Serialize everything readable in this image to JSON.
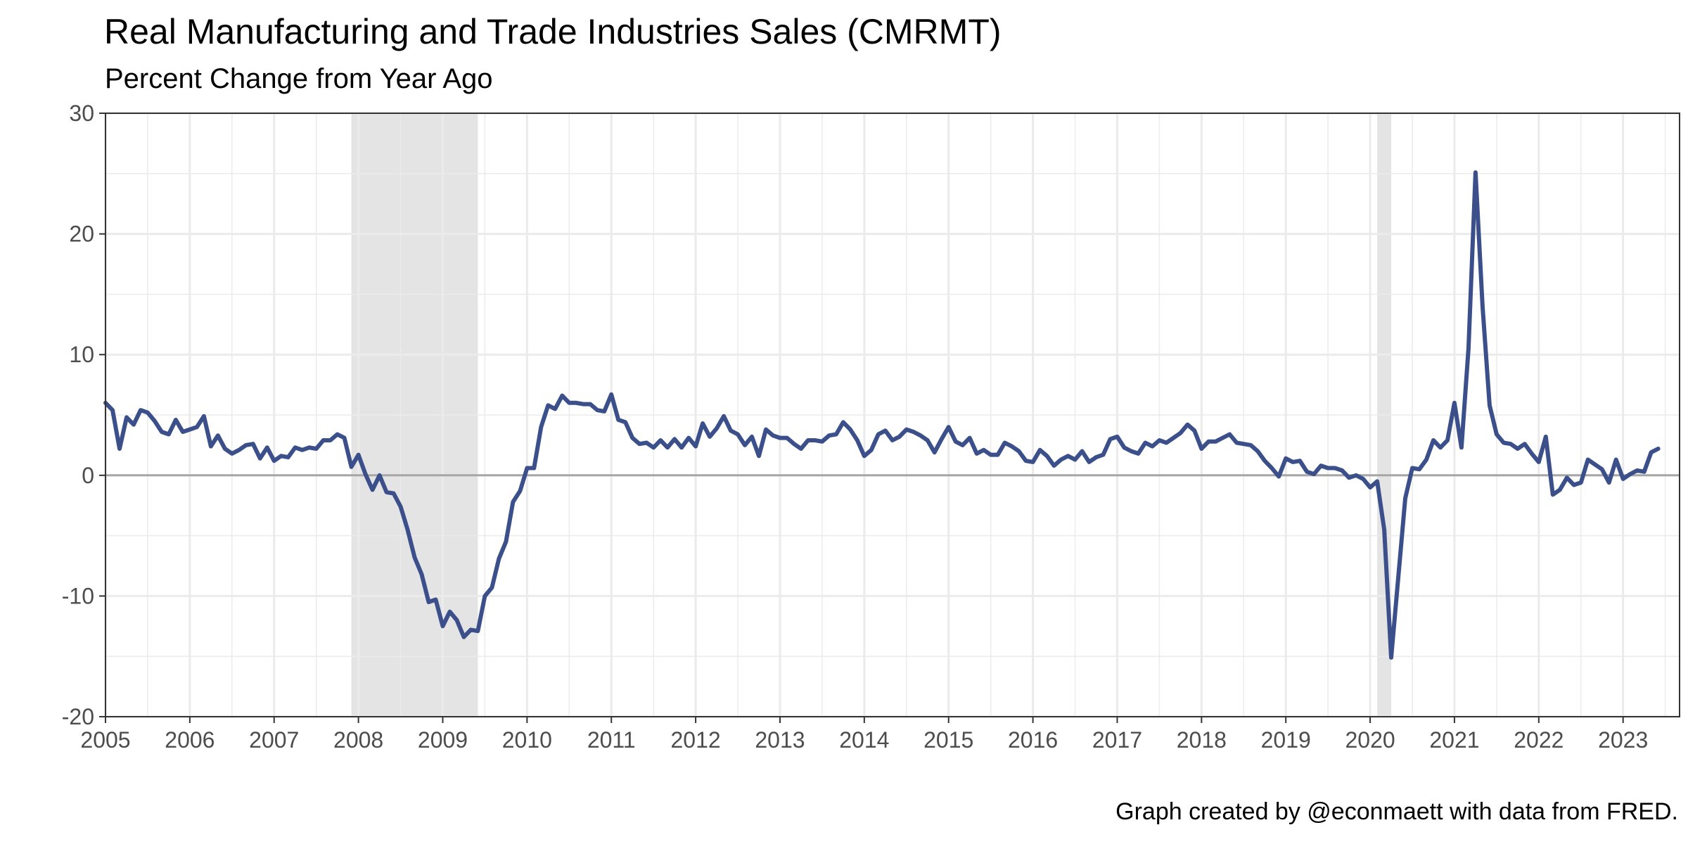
{
  "chart_data": {
    "type": "line",
    "title": "Real Manufacturing and Trade Industries Sales (CMRMT)",
    "subtitle": "Percent Change from Year Ago",
    "caption": "Graph created by @econmaett with data from FRED.",
    "xlabel": "",
    "ylabel": "",
    "xlim": [
      2005.0,
      2023.67
    ],
    "ylim": [
      -20,
      30
    ],
    "x_ticks": [
      2005,
      2006,
      2007,
      2008,
      2009,
      2010,
      2011,
      2012,
      2013,
      2014,
      2015,
      2016,
      2017,
      2018,
      2019,
      2020,
      2021,
      2022,
      2023
    ],
    "x_tick_labels": [
      "2005",
      "2006",
      "2007",
      "2008",
      "2009",
      "2010",
      "2011",
      "2012",
      "2013",
      "2014",
      "2015",
      "2016",
      "2017",
      "2018",
      "2019",
      "2020",
      "2021",
      "2022",
      "2023"
    ],
    "y_ticks": [
      -20,
      -10,
      0,
      10,
      20,
      30
    ],
    "y_tick_labels": [
      "-20",
      "-10",
      "0",
      "10",
      "20",
      "30"
    ],
    "grid": true,
    "zero_line": true,
    "colors": {
      "series": "#3b4f8a",
      "recession": "#e4e4e4",
      "grid": "#ebebeb",
      "zero_line": "#a6a6a6",
      "panel_border": "#333333"
    },
    "recessions": [
      {
        "start": "2007-12",
        "end": "2009-06"
      },
      {
        "start": "2020-02",
        "end": "2020-04"
      }
    ],
    "series": [
      {
        "start": "2005-01",
        "frequency": "monthly",
        "values": [
          6.0,
          5.4,
          2.2,
          4.8,
          4.2,
          5.4,
          5.2,
          4.5,
          3.6,
          3.4,
          4.6,
          3.6,
          3.8,
          4.0,
          4.9,
          2.4,
          3.3,
          2.2,
          1.8,
          2.1,
          2.5,
          2.6,
          1.4,
          2.3,
          1.2,
          1.6,
          1.5,
          2.3,
          2.1,
          2.3,
          2.2,
          2.9,
          2.9,
          3.4,
          3.1,
          0.7,
          1.7,
          0.1,
          -1.2,
          0.0,
          -1.4,
          -1.5,
          -2.6,
          -4.5,
          -6.8,
          -8.2,
          -10.5,
          -10.3,
          -12.5,
          -11.3,
          -12.0,
          -13.4,
          -12.8,
          -12.9,
          -10.0,
          -9.3,
          -6.9,
          -5.5,
          -2.2,
          -1.3,
          0.6,
          0.6,
          4.0,
          5.8,
          5.5,
          6.6,
          6.0,
          6.0,
          5.9,
          5.9,
          5.4,
          5.3,
          6.7,
          4.6,
          4.4,
          3.1,
          2.6,
          2.7,
          2.3,
          2.9,
          2.3,
          3.0,
          2.3,
          3.1,
          2.4,
          4.3,
          3.2,
          3.9,
          4.9,
          3.7,
          3.4,
          2.5,
          3.2,
          1.6,
          3.8,
          3.3,
          3.1,
          3.1,
          2.6,
          2.2,
          2.9,
          2.9,
          2.8,
          3.3,
          3.4,
          4.4,
          3.8,
          2.9,
          1.6,
          2.1,
          3.4,
          3.7,
          2.9,
          3.2,
          3.8,
          3.6,
          3.3,
          2.9,
          1.9,
          3.0,
          4.0,
          2.8,
          2.5,
          3.1,
          1.8,
          2.1,
          1.7,
          1.7,
          2.7,
          2.4,
          2.0,
          1.2,
          1.1,
          2.1,
          1.6,
          0.8,
          1.3,
          1.6,
          1.3,
          2.0,
          1.1,
          1.5,
          1.7,
          3.0,
          3.2,
          2.3,
          2.0,
          1.8,
          2.7,
          2.4,
          2.9,
          2.7,
          3.1,
          3.5,
          4.2,
          3.7,
          2.2,
          2.8,
          2.8,
          3.1,
          3.4,
          2.7,
          2.6,
          2.5,
          2.0,
          1.2,
          0.6,
          -0.1,
          1.4,
          1.1,
          1.2,
          0.3,
          0.1,
          0.8,
          0.6,
          0.6,
          0.4,
          -0.2,
          0.0,
          -0.3,
          -1.0,
          -0.5,
          -4.5,
          -15.1,
          -8.5,
          -1.9,
          0.6,
          0.5,
          1.3,
          2.9,
          2.3,
          2.9,
          6.0,
          2.3,
          10.5,
          25.1,
          14.0,
          5.8,
          3.4,
          2.7,
          2.6,
          2.2,
          2.6,
          1.8,
          1.1,
          3.2,
          -1.6,
          -1.2,
          -0.2,
          -0.8,
          -0.6,
          1.3,
          0.9,
          0.5,
          -0.6,
          1.3,
          -0.3,
          0.1,
          0.4,
          0.3,
          1.9,
          2.2
        ]
      }
    ]
  }
}
